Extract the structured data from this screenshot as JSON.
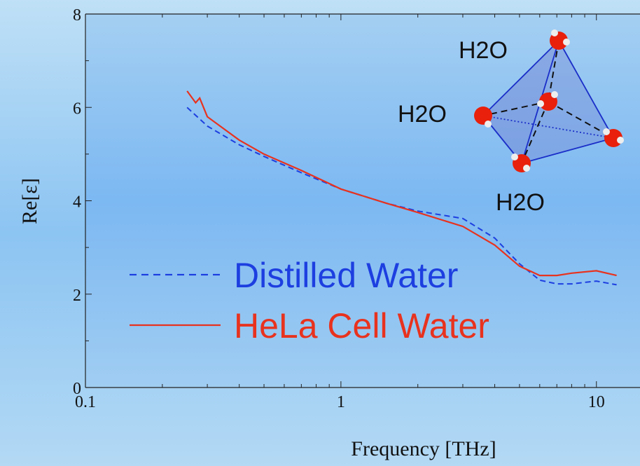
{
  "chart_data": {
    "type": "line",
    "x_label": "Frequency [THz]",
    "y_label": "Re[ε]",
    "log_x": true,
    "xlim": [
      0.1,
      15
    ],
    "ylim": [
      0,
      8
    ],
    "xticks": [
      0.1,
      1,
      10
    ],
    "x_minor_ticks": [
      0.2,
      0.3,
      0.4,
      0.5,
      0.6,
      0.7,
      0.8,
      0.9,
      2,
      3,
      4,
      5,
      6,
      7,
      8,
      9
    ],
    "yticks": [
      0,
      2,
      4,
      6,
      8
    ],
    "y_minor_ticks": [
      1,
      3,
      5,
      7
    ],
    "series": [
      {
        "name": "Distilled Water",
        "color": "#1d3fe0",
        "dash": true,
        "x": [
          0.25,
          0.3,
          0.4,
          0.5,
          0.7,
          1,
          1.5,
          2,
          3,
          4,
          5,
          6,
          7,
          8,
          10,
          12
        ],
        "values": [
          6.0,
          5.6,
          5.2,
          4.95,
          4.6,
          4.25,
          3.95,
          3.78,
          3.62,
          3.2,
          2.65,
          2.3,
          2.22,
          2.22,
          2.28,
          2.2
        ]
      },
      {
        "name": "HeLa Cell Water",
        "color": "#e8321e",
        "dash": false,
        "x": [
          0.25,
          0.27,
          0.28,
          0.3,
          0.4,
          0.5,
          0.7,
          1,
          1.5,
          2,
          3,
          4,
          5,
          6,
          7,
          8,
          10,
          12
        ],
        "values": [
          6.35,
          6.1,
          6.2,
          5.8,
          5.3,
          5.0,
          4.65,
          4.25,
          3.95,
          3.75,
          3.45,
          3.05,
          2.6,
          2.4,
          2.4,
          2.45,
          2.5,
          2.4
        ]
      }
    ],
    "annotations": [
      "H2O",
      "H2O",
      "H2O"
    ]
  }
}
